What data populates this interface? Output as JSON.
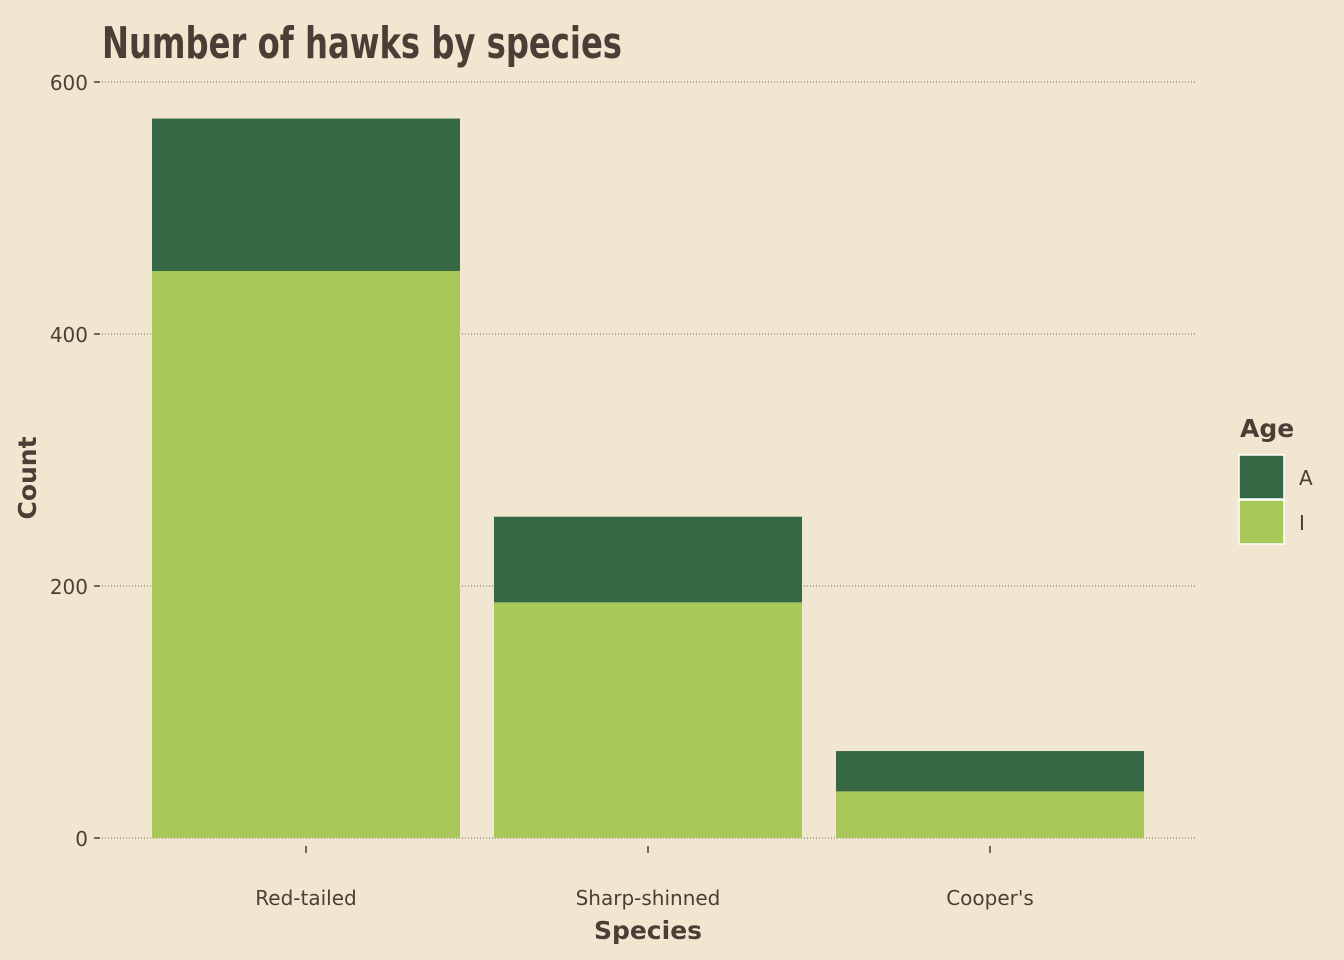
{
  "chart_data": {
    "type": "bar",
    "stacked": true,
    "title": "Number of hawks by species",
    "xlabel": "Species",
    "ylabel": "Count",
    "categories": [
      "Red-tailed",
      "Sharp-shinned",
      "Cooper's"
    ],
    "series": [
      {
        "name": "I",
        "values": [
          450,
          187,
          37
        ]
      },
      {
        "name": "A",
        "values": [
          121,
          68,
          32
        ]
      }
    ],
    "ylim": [
      0,
      600
    ],
    "yticks": [
      "0",
      "200",
      "400",
      "600"
    ],
    "grid": "horizontal dotted",
    "legend": {
      "title": "Age",
      "placement": "right",
      "entries": [
        "A",
        "I"
      ]
    }
  },
  "colors": {
    "background": "#F1E7D0",
    "A": "#376845",
    "I": "#A8C95A",
    "text": "#4A3F36",
    "grid": "#6B6158"
  }
}
